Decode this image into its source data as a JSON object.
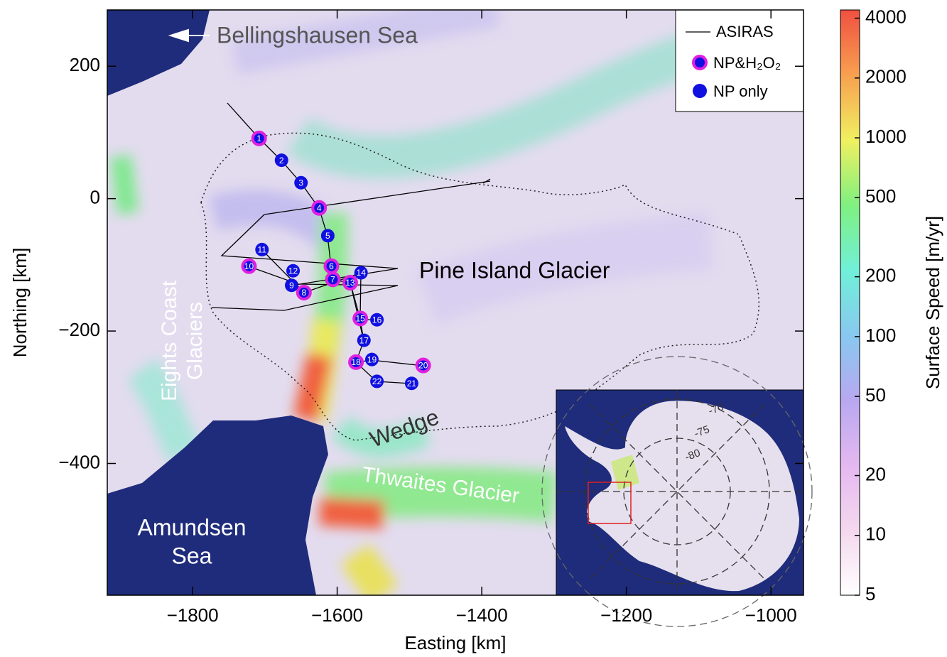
{
  "map": {
    "xlabel": "Easting [km]",
    "ylabel": "Northing [km]",
    "xlim": [
      -1918,
      -955
    ],
    "ylim": [
      -599,
      285
    ],
    "xticks": [
      {
        "value": -1800,
        "label": "−1800"
      },
      {
        "value": -1600,
        "label": "−1600"
      },
      {
        "value": -1400,
        "label": "−1400"
      },
      {
        "value": -1200,
        "label": "−1200"
      },
      {
        "value": -1000,
        "label": "−1000"
      }
    ],
    "yticks": [
      200,
      0,
      {
        "value": -200,
        "label": "−200"
      },
      {
        "value": -400,
        "label": "−400"
      }
    ],
    "annotations": [
      {
        "lines": [
          "Bellingshausen Sea"
        ]
      },
      {
        "lines": [
          "Pine Island Glacier"
        ]
      },
      {
        "lines": [
          "Eights Coast",
          "Glaciers"
        ]
      },
      {
        "lines": [
          "Wedge"
        ]
      },
      {
        "lines": [
          "Thwaites Glacier"
        ]
      },
      {
        "lines": [
          "Amundsen",
          "Sea"
        ]
      }
    ],
    "legend": {
      "corner": "upper right",
      "entries": [
        "ASIRAS",
        "NP&H₂O₂",
        "NP only"
      ]
    },
    "site_colors": {
      "NP&H₂O₂": "#e020e0",
      "NP only": "#1010e0"
    },
    "sites": [
      {
        "label": "1",
        "x": -1708,
        "y": 91,
        "kind": "NP&H₂O₂"
      },
      {
        "label": "2",
        "x": -1677,
        "y": 58,
        "kind": "NP only"
      },
      {
        "label": "3",
        "x": -1650,
        "y": 24,
        "kind": "NP only"
      },
      {
        "label": "4",
        "x": -1625,
        "y": -14,
        "kind": "NP&H₂O₂"
      },
      {
        "label": "5",
        "x": -1613,
        "y": -56,
        "kind": "NP only"
      },
      {
        "label": "6",
        "x": -1608,
        "y": -102,
        "kind": "NP&H₂O₂"
      },
      {
        "label": "7",
        "x": -1606,
        "y": -122,
        "kind": "NP&H₂O₂"
      },
      {
        "label": "8",
        "x": -1646,
        "y": -142,
        "kind": "NP&H₂O₂"
      },
      {
        "label": "9",
        "x": -1663,
        "y": -131,
        "kind": "NP only"
      },
      {
        "label": "10",
        "x": -1722,
        "y": -102,
        "kind": "NP&H₂O₂"
      },
      {
        "label": "11",
        "x": -1704,
        "y": -77,
        "kind": "NP only"
      },
      {
        "label": "12",
        "x": -1661,
        "y": -109,
        "kind": "NP only"
      },
      {
        "label": "13",
        "x": -1582,
        "y": -127,
        "kind": "NP&H₂O₂"
      },
      {
        "label": "14",
        "x": -1567,
        "y": -112,
        "kind": "NP only"
      },
      {
        "label": "15",
        "x": -1568,
        "y": -181,
        "kind": "NP&H₂O₂"
      },
      {
        "label": "16",
        "x": -1545,
        "y": -183,
        "kind": "NP only"
      },
      {
        "label": "17",
        "x": -1563,
        "y": -214,
        "kind": "NP only"
      },
      {
        "label": "18",
        "x": -1574,
        "y": -247,
        "kind": "NP&H₂O₂"
      },
      {
        "label": "19",
        "x": -1552,
        "y": -243,
        "kind": "NP only"
      },
      {
        "label": "20",
        "x": -1481,
        "y": -252,
        "kind": "NP&H₂O₂"
      },
      {
        "label": "21",
        "x": -1497,
        "y": -279,
        "kind": "NP only"
      },
      {
        "label": "22",
        "x": -1545,
        "y": -276,
        "kind": "NP only"
      }
    ],
    "colorbar": {
      "label": "Surface Speed [m/yr]",
      "log": true,
      "lim": [
        5,
        4400
      ],
      "ticks": [
        4000,
        2000,
        1000,
        500,
        200,
        100,
        50,
        20,
        10,
        5
      ],
      "colors": [
        "#ffffff",
        "#f4d8ee",
        "#e4b8f0",
        "#b8a8f0",
        "#88c8f0",
        "#70f0d8",
        "#80f080",
        "#f0f060",
        "#f8a050",
        "#f05040"
      ]
    },
    "inset": {
      "labels": [
        "-70",
        "-75",
        "-80"
      ]
    }
  }
}
